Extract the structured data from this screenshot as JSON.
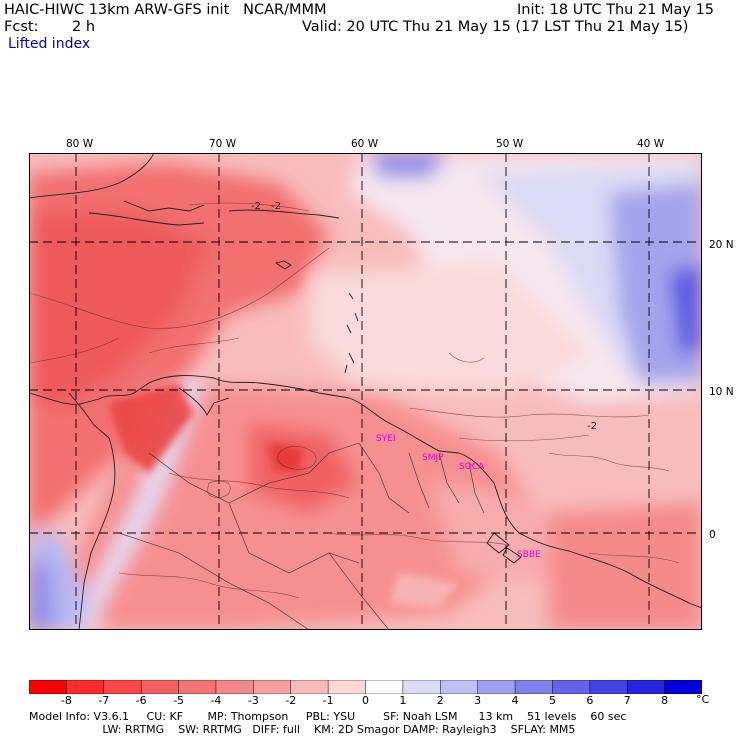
{
  "header": {
    "title_left": "HAIC-HIWC 13km ARW-GFS init   NCAR/MMM",
    "init": "Init: 18 UTC Thu 21 May 15",
    "fcst_label": "Fcst:",
    "fcst_value": "2 h",
    "valid": "Valid: 20 UTC Thu 21 May 15 (17 LST Thu 21 May 15)",
    "field": "Lifted index"
  },
  "map": {
    "lon_labels": [
      "80 W",
      "70 W",
      "60 W",
      "50 W",
      "40 W"
    ],
    "lat_labels": [
      "20 N",
      "10 N",
      "0"
    ],
    "contour_labels": [
      "-2",
      "-2",
      "-2"
    ],
    "stations": [
      "SYEI",
      "SMJP",
      "SOCA",
      "SBBE"
    ],
    "colors": {
      "neg_strong": "#f02020",
      "neg_mid": "#f46a6a",
      "neg_light": "#f8b0b0",
      "neutral": "#fff0f0",
      "pos_light": "#c8c8f4",
      "pos_mid": "#8080e8",
      "pos_strong": "#1818e0",
      "station": "#e000e0"
    }
  },
  "colorbar": {
    "ticks": [
      "-8",
      "-7",
      "-6",
      "-5",
      "-4",
      "-3",
      "-2",
      "-1",
      "0",
      "1",
      "2",
      "3",
      "4",
      "5",
      "6",
      "7",
      "8"
    ],
    "unit": "°C",
    "colors": [
      "#ff0000",
      "#ff2a2a",
      "#f84848",
      "#f46060",
      "#f47474",
      "#f48888",
      "#f8a0a0",
      "#f8baba",
      "#fcd8d8",
      "#ffffff",
      "#dcdcf8",
      "#c0c0f4",
      "#a0a0f0",
      "#8080ec",
      "#6464e8",
      "#4444e4",
      "#2424e0",
      "#0000dc"
    ]
  },
  "footer": {
    "line1": "Model Info: V3.6.1     CU: KF       MP: Thompson     PBL: YSU        SF: Noah LSM      13 km    51 levels    60 sec",
    "line2": "                     LW: RRTMG    SW: RRTMG   DIFF: full    KM: 2D Smagor DAMP: Rayleigh3    SFLAY: MM5"
  }
}
